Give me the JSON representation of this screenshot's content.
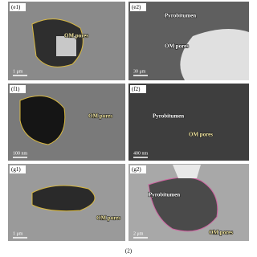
{
  "panels": [
    {
      "label": "(e1)",
      "annotations": [
        "OM pores"
      ],
      "scale_bar": "1 μm"
    },
    {
      "label": "(e2)",
      "annotations": [
        "Pyrobitumen",
        "OM pores"
      ],
      "scale_bar": "30 μm"
    },
    {
      "label": "(f1)",
      "annotations": [
        "OM pores"
      ],
      "scale_bar": "100 nm"
    },
    {
      "label": "(f2)",
      "annotations": [
        "Pyrobitumen",
        "OM pores"
      ],
      "scale_bar": "400 nm"
    },
    {
      "label": "(g1)",
      "annotations": [
        "OM pores"
      ],
      "scale_bar": "1 μm"
    },
    {
      "label": "(g2)",
      "annotations": [
        "Pyrobitumen",
        "OM pores"
      ],
      "scale_bar": "2 μm"
    }
  ],
  "caption": "(2)"
}
